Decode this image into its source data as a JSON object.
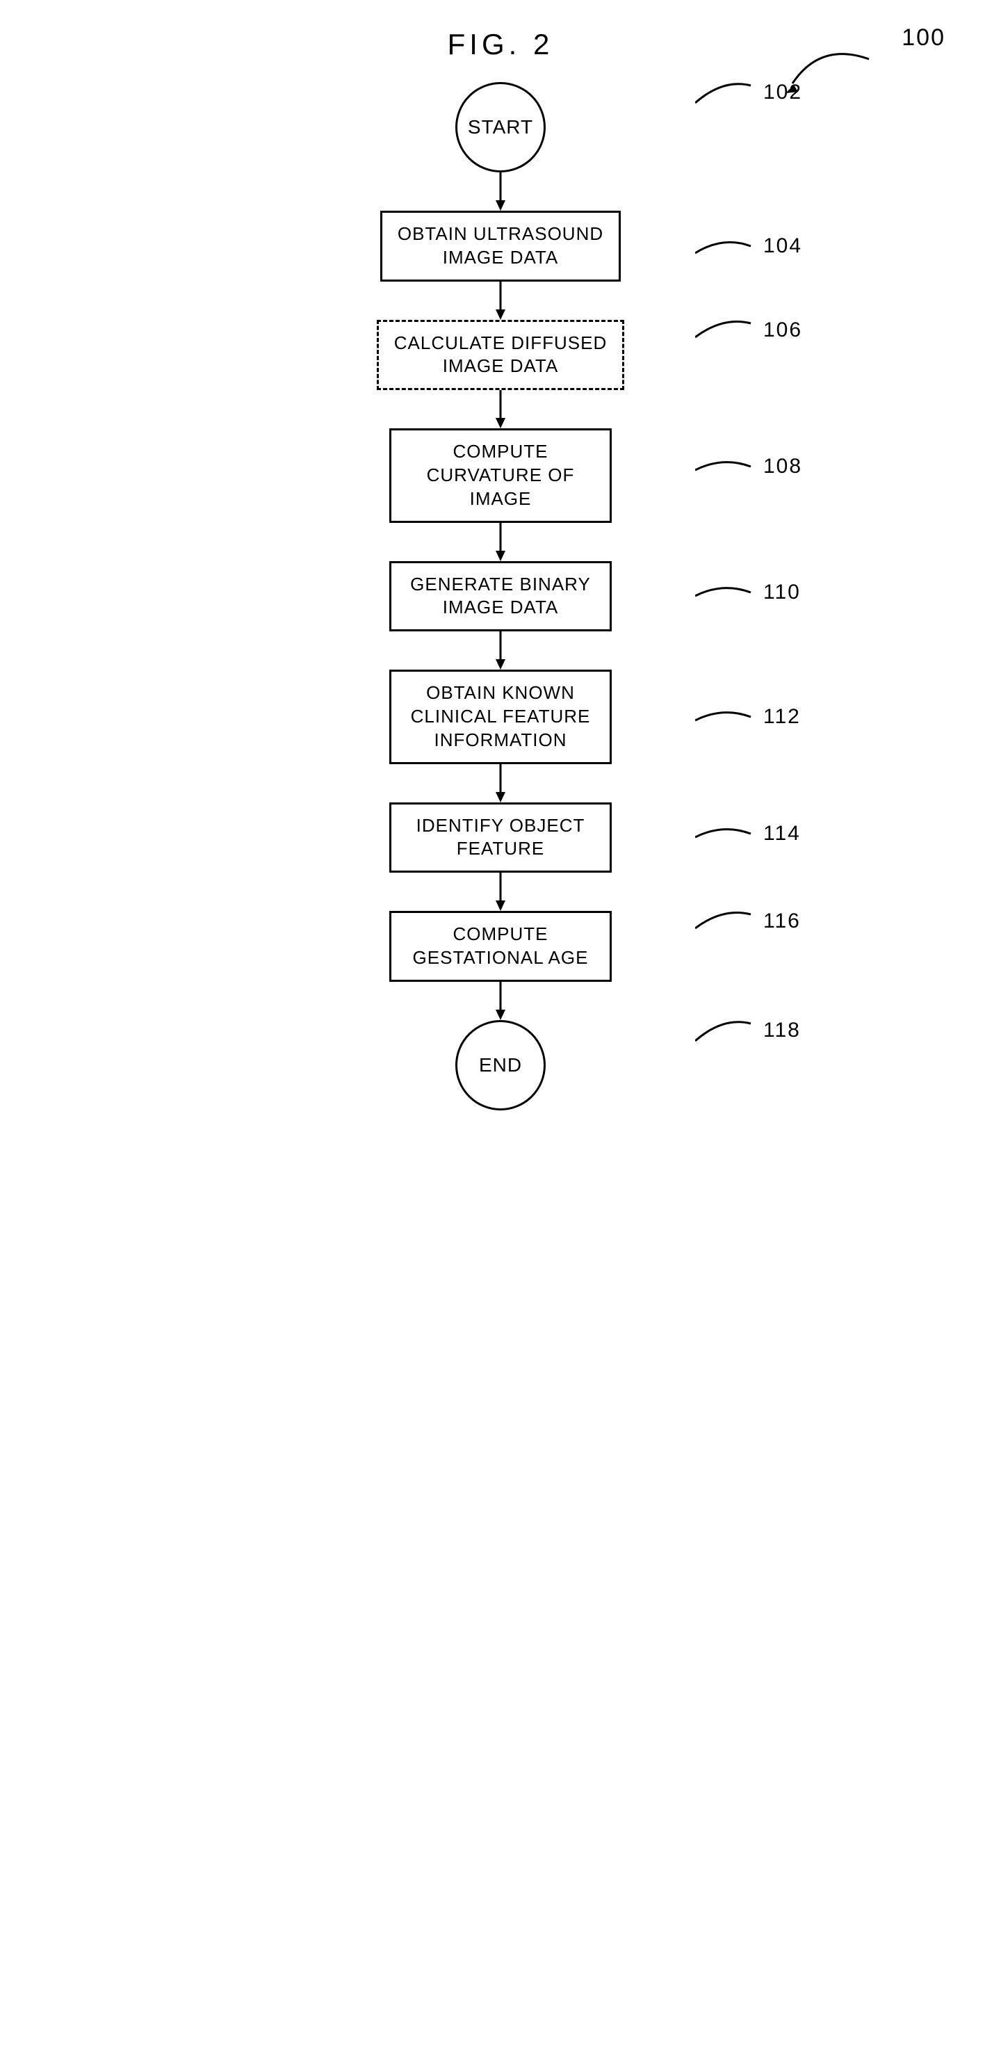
{
  "figure": {
    "title": "FIG. 2",
    "overall_ref": "100"
  },
  "nodes": {
    "start": {
      "label": "START",
      "ref": "102",
      "shape": "circle"
    },
    "step1": {
      "label": "OBTAIN ULTRASOUND\nIMAGE DATA",
      "ref": "104",
      "shape": "rect"
    },
    "step2": {
      "label": "CALCULATE DIFFUSED\nIMAGE DATA",
      "ref": "106",
      "shape": "rect-dashed"
    },
    "step3": {
      "label": "COMPUTE\nCURVATURE OF\nIMAGE",
      "ref": "108",
      "shape": "rect"
    },
    "step4": {
      "label": "GENERATE BINARY\nIMAGE DATA",
      "ref": "110",
      "shape": "rect"
    },
    "step5": {
      "label": "OBTAIN KNOWN\nCLINICAL FEATURE\nINFORMATION",
      "ref": "112",
      "shape": "rect"
    },
    "step6": {
      "label": "IDENTIFY OBJECT\nFEATURE",
      "ref": "114",
      "shape": "rect"
    },
    "step7": {
      "label": "COMPUTE\nGESTATIONAL AGE",
      "ref": "116",
      "shape": "rect"
    },
    "end": {
      "label": "END",
      "ref": "118",
      "shape": "circle"
    }
  },
  "style": {
    "stroke": "#000000",
    "stroke_width": 3,
    "font_size_title": 42,
    "font_size_node": 26,
    "font_size_ref": 30,
    "background": "#ffffff"
  }
}
